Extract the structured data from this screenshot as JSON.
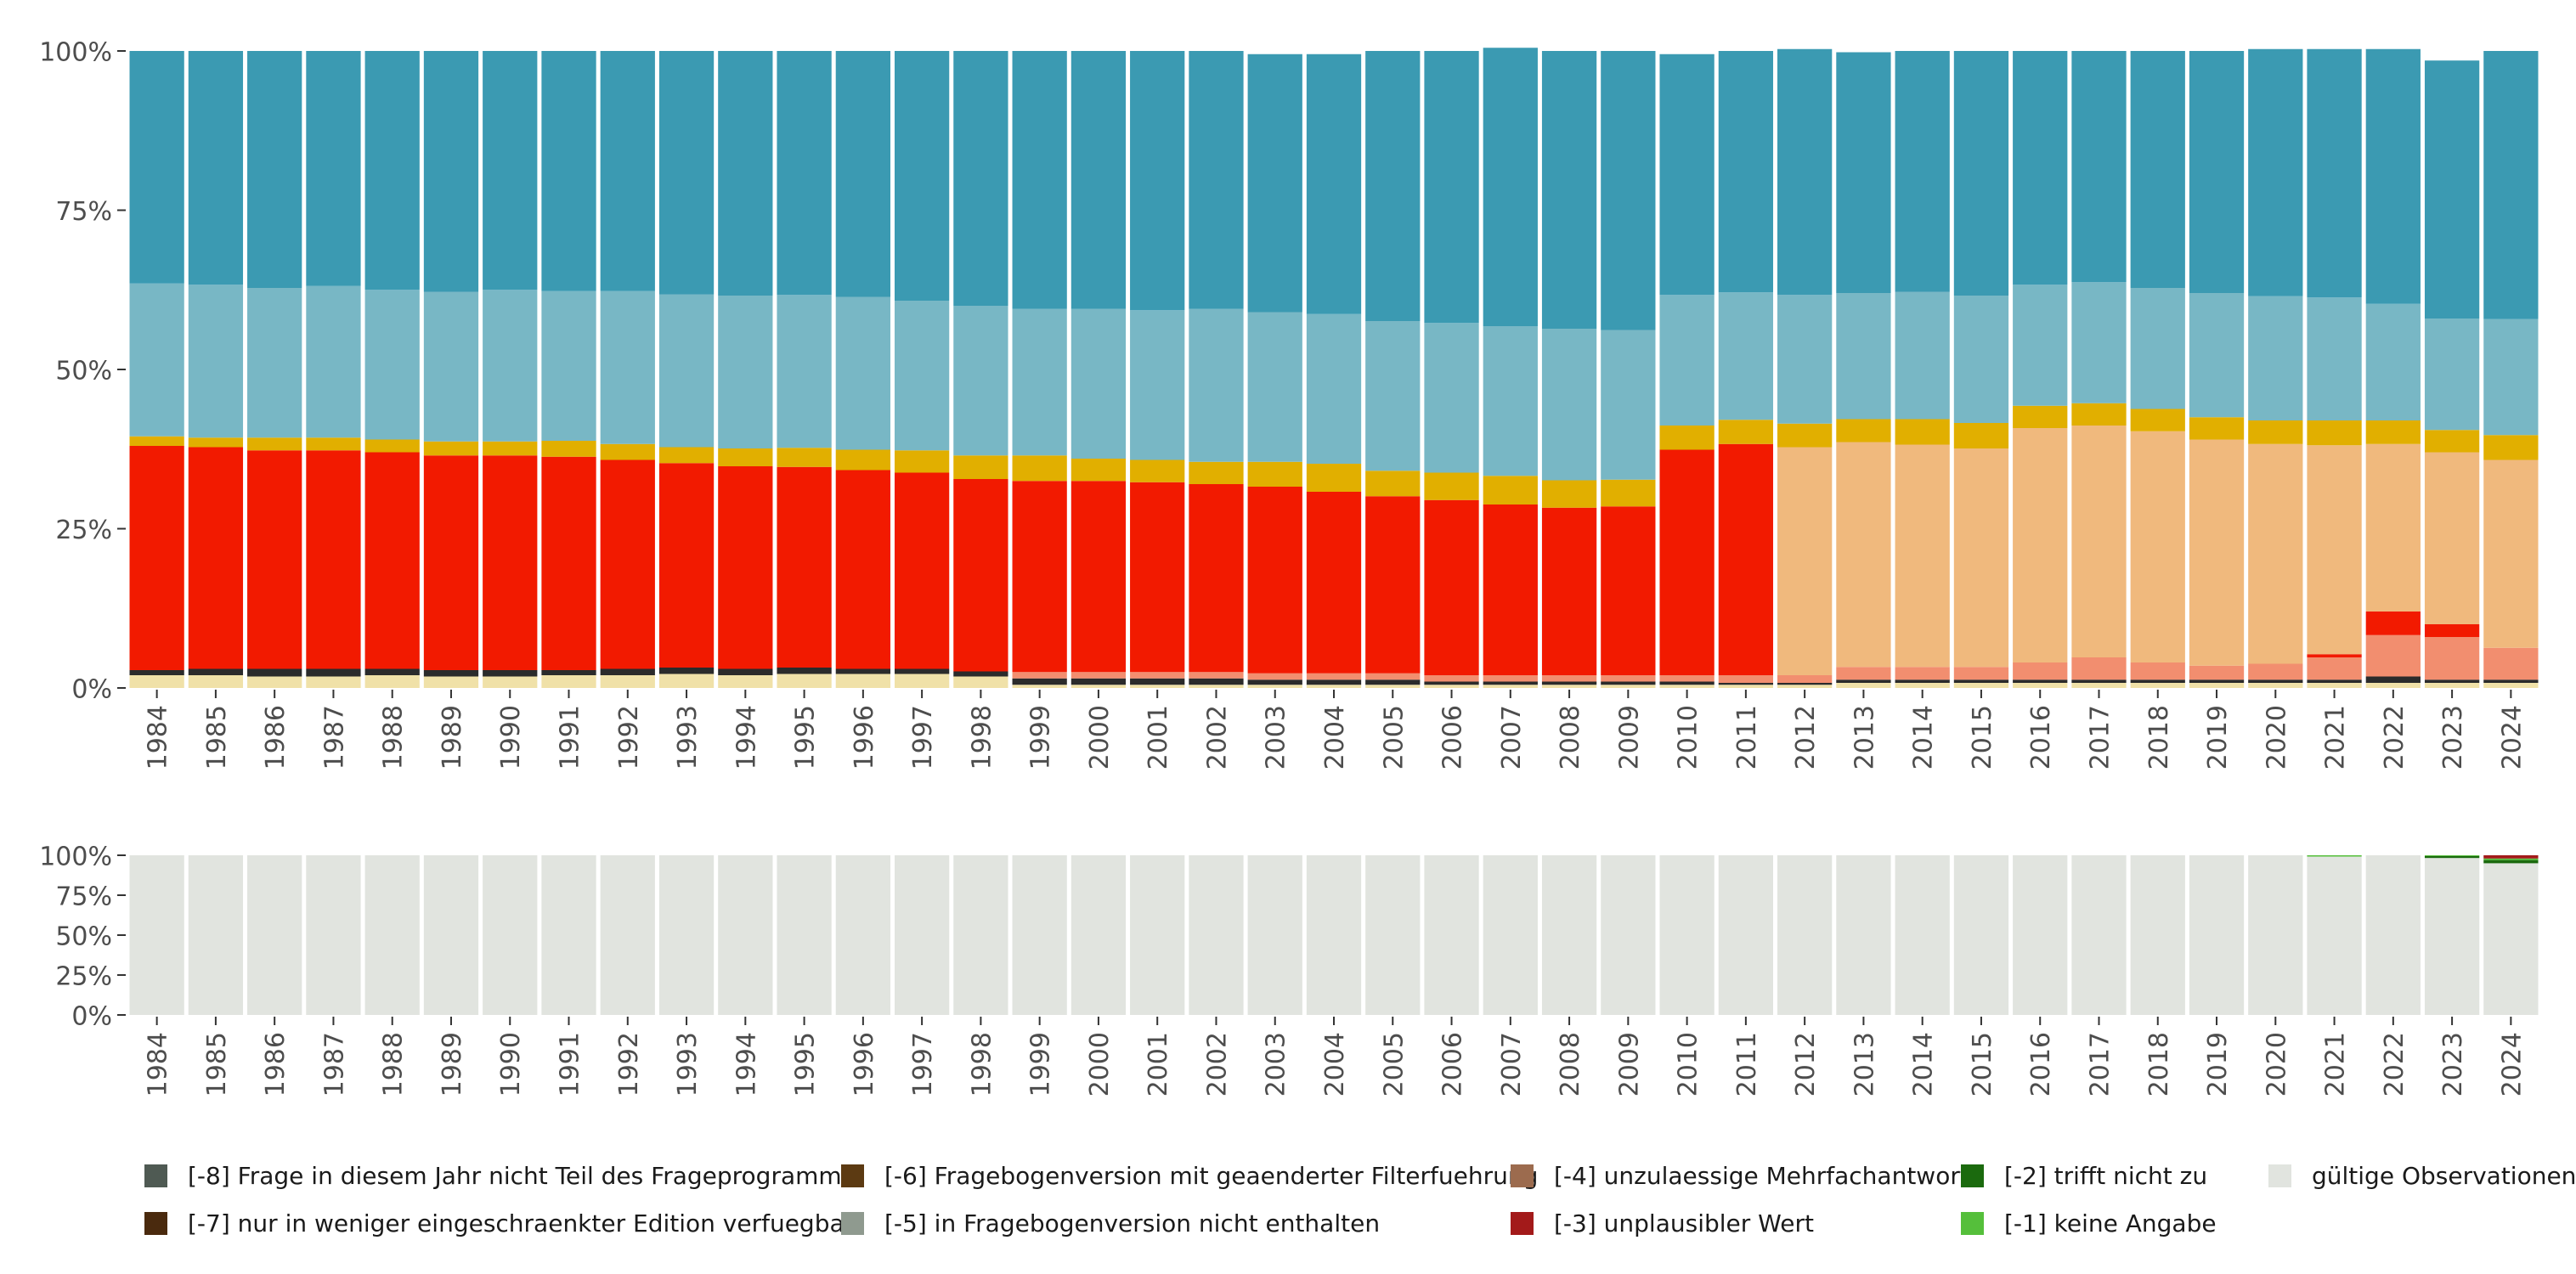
{
  "chart_data": {
    "type": "bar",
    "stacked": true,
    "categories": [
      "1984",
      "1985",
      "1986",
      "1987",
      "1988",
      "1989",
      "1990",
      "1991",
      "1992",
      "1993",
      "1994",
      "1995",
      "1996",
      "1997",
      "1998",
      "1999",
      "2000",
      "2001",
      "2002",
      "2003",
      "2004",
      "2005",
      "2006",
      "2007",
      "2008",
      "2009",
      "2010",
      "2011",
      "2012",
      "2013",
      "2014",
      "2015",
      "2016",
      "2017",
      "2018",
      "2019",
      "2020",
      "2021",
      "2022",
      "2023",
      "2024"
    ],
    "y_ticks": [
      "0%",
      "25%",
      "50%",
      "75%",
      "100%"
    ],
    "ylim": [
      0,
      100
    ],
    "top_panel": {
      "description": "share of valid answer categories (colors only, no legend)",
      "colors": {
        "sub1": "#f0e1a8",
        "sub2": "#2b2b2b",
        "lowOrange": "#f28e6f",
        "red": "#f21a00",
        "peach": "#f0b97d",
        "yellow": "#e1af00",
        "lightBlue": "#78b7c5",
        "blue": "#3b9ab2"
      },
      "series": [
        {
          "name": "sub1",
          "values": [
            2,
            2,
            1.8,
            1.8,
            2,
            1.8,
            1.8,
            2,
            2,
            2.2,
            2,
            2.2,
            2.2,
            2.2,
            1.8,
            0.5,
            0.5,
            0.5,
            0.5,
            0.5,
            0.5,
            0.5,
            0.5,
            0.5,
            0.5,
            0.5,
            0.5,
            0.5,
            0.5,
            0.8,
            0.8,
            0.8,
            0.8,
            0.8,
            0.8,
            0.8,
            0.8,
            0.8,
            0.8,
            0.8,
            0.8
          ]
        },
        {
          "name": "sub2",
          "values": [
            0.8,
            1,
            1.2,
            1.2,
            1,
            1,
            1,
            0.8,
            1,
            1,
            1,
            1,
            0.8,
            0.8,
            0.8,
            1,
            1,
            1,
            1,
            0.8,
            0.8,
            0.8,
            0.5,
            0.5,
            0.5,
            0.5,
            0.5,
            0.3,
            0.3,
            0.5,
            0.5,
            0.5,
            0.5,
            0.5,
            0.5,
            0.5,
            0.5,
            0.5,
            1,
            0.5,
            0.5
          ]
        },
        {
          "name": "lowOrange",
          "values": [
            0,
            0,
            0,
            0,
            0,
            0,
            0,
            0,
            0,
            0,
            0,
            0,
            0,
            0,
            0,
            1,
            1,
            1,
            1,
            1,
            1,
            1,
            1,
            1,
            1,
            1,
            1,
            1.2,
            1.2,
            2,
            2,
            2,
            2.7,
            3.5,
            2.7,
            2.2,
            2.5,
            3.5,
            6.5,
            6.7,
            5
          ]
        },
        {
          "name": "red",
          "values": [
            35.2,
            34.8,
            34.3,
            34.3,
            34,
            33.7,
            33.7,
            33.5,
            32.8,
            32.1,
            31.8,
            31.5,
            31.2,
            30.8,
            30.2,
            30,
            30,
            29.8,
            29.5,
            29.3,
            28.5,
            27.8,
            27.5,
            26.8,
            26.3,
            26.5,
            35.4,
            36.3,
            0,
            0,
            0,
            0,
            0,
            0,
            0,
            0,
            0,
            0.5,
            3.7,
            2,
            0
          ]
        },
        {
          "name": "peach",
          "values": [
            0,
            0,
            0,
            0,
            0,
            0,
            0,
            0,
            0,
            0,
            0,
            0,
            0,
            0,
            0,
            0,
            0,
            0,
            0,
            0,
            0,
            0,
            0,
            0,
            0,
            0,
            0,
            0,
            35.8,
            35.3,
            34.9,
            34.3,
            36.8,
            36.4,
            36.3,
            35.5,
            34.5,
            32.8,
            26.3,
            27,
            29.5
          ]
        },
        {
          "name": "yellow",
          "values": [
            1.5,
            1.5,
            2,
            2,
            2,
            2.2,
            2.2,
            2.5,
            2.5,
            2.5,
            2.8,
            3,
            3.2,
            3.5,
            3.7,
            4,
            3.5,
            3.5,
            3.5,
            3.9,
            4.4,
            4,
            4.3,
            4.5,
            4.3,
            4.2,
            3.8,
            3.8,
            3.7,
            3.6,
            4,
            4,
            3.5,
            3.5,
            3.5,
            3.5,
            3.7,
            3.9,
            3.7,
            3.5,
            3.9
          ]
        },
        {
          "name": "lightBlue",
          "values": [
            24,
            24,
            23.5,
            23.8,
            23.5,
            23.5,
            23.8,
            23.5,
            24,
            24,
            24,
            24,
            24,
            23.5,
            23.5,
            23,
            23.5,
            23.5,
            24,
            23.5,
            23.5,
            23.5,
            23.5,
            23.5,
            23.8,
            23.5,
            20.5,
            20,
            20.2,
            19.8,
            20,
            20,
            19,
            19,
            19,
            19.5,
            19.5,
            19.3,
            18.3,
            17.5,
            18.2
          ]
        },
        {
          "name": "blue",
          "values": [
            36.5,
            36.7,
            37.2,
            36.9,
            37.5,
            37.8,
            37.5,
            37.7,
            37.7,
            38.2,
            38.4,
            38.3,
            38.6,
            39.2,
            40,
            40.5,
            40.5,
            40.7,
            40.5,
            40.5,
            40.8,
            42.4,
            42.7,
            43.7,
            43.6,
            43.8,
            37.8,
            37.9,
            38.6,
            37.8,
            37.8,
            38.4,
            36.7,
            36.3,
            37.2,
            38,
            38.8,
            39,
            40,
            40.5,
            42.1
          ]
        }
      ]
    },
    "bottom_panel": {
      "description": "share of missing-code categories vs valid observations",
      "series": [
        {
          "name": "[-2] trifft nicht zu",
          "color": "#1b6a0e",
          "values": [
            0,
            0,
            0,
            0,
            0,
            0,
            0,
            0,
            0,
            0,
            0,
            0,
            0,
            0,
            0,
            0,
            0,
            0,
            0,
            0,
            0,
            0,
            0,
            0,
            0,
            0,
            0,
            0,
            0,
            0,
            0,
            0,
            0,
            0,
            0,
            0,
            0,
            0,
            0,
            1.2,
            2
          ]
        },
        {
          "name": "[-1] keine Angabe",
          "color": "#55bf3b",
          "values": [
            0,
            0,
            0,
            0,
            0,
            0,
            0,
            0,
            0,
            0,
            0,
            0,
            0,
            0,
            0,
            0,
            0,
            0,
            0,
            0,
            0,
            0,
            0,
            0,
            0,
            0,
            0,
            0,
            0,
            0,
            0,
            0,
            0,
            0,
            0,
            0,
            0,
            0.8,
            0,
            0.5,
            1
          ]
        },
        {
          "name": "[-3] unplausibler Wert",
          "color": "#a31a1a",
          "values": [
            0,
            0,
            0,
            0,
            0,
            0,
            0,
            0,
            0,
            0,
            0,
            0,
            0,
            0,
            0,
            0,
            0,
            0,
            0,
            0,
            0,
            0,
            0,
            0,
            0,
            0,
            0,
            0,
            0,
            0,
            0,
            0,
            0,
            0,
            0,
            0,
            0,
            0,
            0,
            0,
            2
          ]
        },
        {
          "name": "gültige Observationen",
          "color": "#e1e4df",
          "values": [
            100,
            100,
            100,
            100,
            100,
            100,
            100,
            100,
            100,
            100,
            100,
            100,
            100,
            100,
            100,
            100,
            100,
            100,
            100,
            100,
            100,
            100,
            100,
            100,
            100,
            100,
            100,
            100,
            100,
            100,
            100,
            100,
            100,
            100,
            100,
            100,
            100,
            99.2,
            100,
            98.3,
            95
          ]
        }
      ]
    },
    "legend": [
      {
        "label": "[-8] Frage in diesem Jahr nicht Teil des Frageprogramms",
        "color": "#4f5a53"
      },
      {
        "label": "[-7] nur in weniger eingeschraenkter Edition verfuegbar",
        "color": "#4a2a0e"
      },
      {
        "label": "[-6] Fragebogenversion mit geaenderter Filterfuehrung",
        "color": "#5c3a12"
      },
      {
        "label": "[-5] in Fragebogenversion nicht enthalten",
        "color": "#8f9a8f"
      },
      {
        "label": "[-4] unzulaessige Mehrfachantwort",
        "color": "#9c6b4e"
      },
      {
        "label": "[-3] unplausibler Wert",
        "color": "#a31a1a"
      },
      {
        "label": "[-2] trifft nicht zu",
        "color": "#1b6a0e"
      },
      {
        "label": "[-1] keine Angabe",
        "color": "#55bf3b"
      },
      {
        "label": "gültige Observationen",
        "color": "#e1e4df"
      }
    ]
  }
}
